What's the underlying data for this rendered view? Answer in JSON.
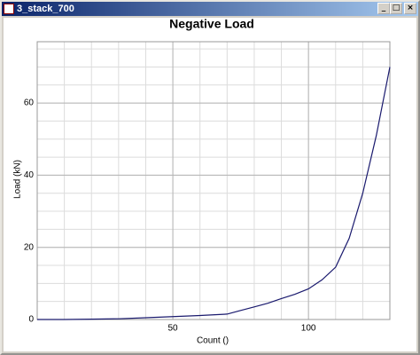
{
  "window": {
    "title": "3_stack_700"
  },
  "chart_data": {
    "type": "line",
    "title": "Negative Load",
    "x_label": "Count ()",
    "y_label": "Load (kN)",
    "series": [
      {
        "color": "#1a1a6e",
        "x": [
          0,
          10,
          20,
          30,
          40,
          50,
          60,
          70,
          75,
          80,
          85,
          90,
          95,
          100,
          105,
          110,
          115,
          120,
          125,
          130
        ],
        "values": [
          0,
          0,
          0.1,
          0.2,
          0.5,
          0.8,
          1.1,
          1.5,
          2.5,
          3.5,
          4.5,
          5.8,
          7,
          8.5,
          11,
          14.5,
          22.5,
          35,
          51,
          70
        ]
      }
    ],
    "xlim": [
      0,
      130
    ],
    "ylim": [
      0,
      77
    ],
    "xticks": [
      50,
      100
    ],
    "yticks": [
      0,
      20,
      40,
      60
    ],
    "x_gridlines": [
      10,
      20,
      30,
      40,
      50,
      60,
      70,
      80,
      90,
      100,
      110,
      120
    ],
    "y_gridlines": [
      5,
      10,
      15,
      20,
      25,
      30,
      35,
      40,
      45,
      50,
      55,
      60,
      65,
      70,
      75
    ],
    "grid": true
  }
}
